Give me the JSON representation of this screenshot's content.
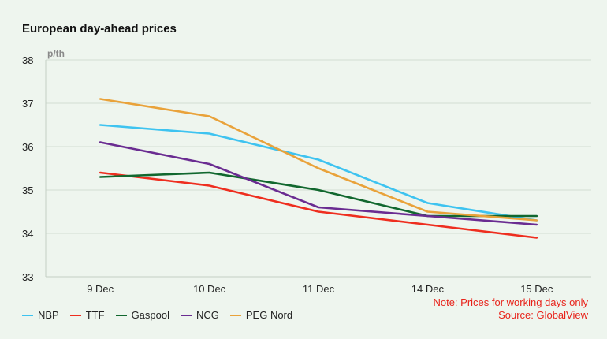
{
  "chart_data": {
    "type": "line",
    "title": "European day-ahead prices",
    "ylabel": "p/th",
    "xlabel": "",
    "categories": [
      "9 Dec",
      "10 Dec",
      "11 Dec",
      "14 Dec",
      "15 Dec"
    ],
    "ylim": [
      33,
      38
    ],
    "yticks": [
      "33",
      "34",
      "35",
      "36",
      "37",
      "38"
    ],
    "grid": true,
    "legend_position": "bottom-left",
    "series": [
      {
        "name": "NBP",
        "color": "#3ec3f0",
        "values": [
          36.5,
          36.3,
          35.7,
          34.7,
          34.3
        ]
      },
      {
        "name": "TTF",
        "color": "#ee2e1f",
        "values": [
          35.4,
          35.1,
          34.5,
          34.2,
          33.9
        ]
      },
      {
        "name": "Gaspool",
        "color": "#11672e",
        "values": [
          35.3,
          35.4,
          35.0,
          34.4,
          34.4
        ]
      },
      {
        "name": "NCG",
        "color": "#6a2c91",
        "values": [
          36.1,
          35.6,
          34.6,
          34.4,
          34.2
        ]
      },
      {
        "name": "PEG Nord",
        "color": "#e9a23a",
        "values": [
          37.1,
          36.7,
          35.5,
          34.5,
          34.3
        ]
      }
    ],
    "note": "Note: Prices for working days only",
    "source": "Source: GlobalView"
  }
}
